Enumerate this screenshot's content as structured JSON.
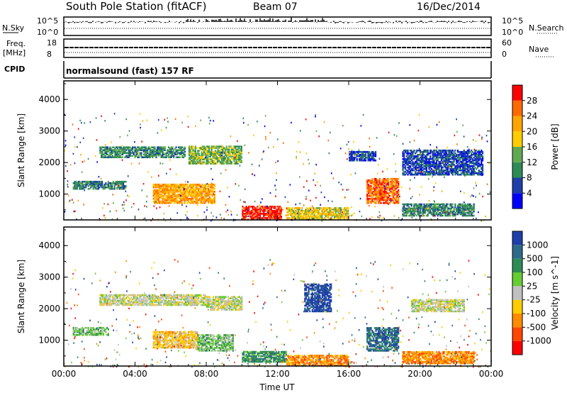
{
  "header": {
    "station": "South Pole Station (fitACF)",
    "beam": "Beam 07",
    "date": "16/Dec/2014"
  },
  "strip_labels": {
    "nsky": "N.Sky",
    "nsky_top": "10^5",
    "nsky_bottom": "10^0",
    "freq": "Freq.",
    "freq_unit": "[MHz]",
    "freq_top": "18",
    "freq_bottom": "8",
    "cpid": "CPID",
    "nsearch": "N.Search",
    "nsearch_top": "10^5",
    "nsearch_bottom": "10^0",
    "nave": "Nave",
    "nave_top": "60",
    "nave_bottom": "0",
    "cpid_text": "normalsound (fast) 157 RF"
  },
  "colors": {
    "power_scale": [
      "#0000ff",
      "#1f3fa8",
      "#2e8b57",
      "#5faa50",
      "#ffcc00",
      "#ffa500",
      "#ff6a00",
      "#ff0000"
    ],
    "velocity_scale": [
      "#1f3fa8",
      "#2e6b8a",
      "#2e8b57",
      "#66cc33",
      "#c0c0c0",
      "#ffcc00",
      "#ff8c00",
      "#ff4500",
      "#ff0000"
    ]
  },
  "chart_data": [
    {
      "type": "heatmap",
      "title": "Power",
      "ylabel": "Slant Range [km]",
      "colorbar_label": "Power [dB]",
      "colorbar_ticks": [
        "4",
        "8",
        "12",
        "16",
        "20",
        "24",
        "28"
      ],
      "x_ticks": [
        "00:00",
        "04:00",
        "08:00",
        "12:00",
        "16:00",
        "20:00",
        "00:00"
      ],
      "y_ticks": [
        "1000",
        "2000",
        "3000",
        "4000"
      ],
      "ylim": [
        180,
        4590
      ],
      "xlim_hours": [
        0,
        24
      ],
      "regions": [
        {
          "t0": 2.0,
          "t1": 6.8,
          "r0": 2150,
          "r1": 2500,
          "level": 2
        },
        {
          "t0": 7.0,
          "t1": 10.0,
          "r0": 1950,
          "r1": 2500,
          "level": 3
        },
        {
          "t0": 5.0,
          "t1": 8.5,
          "r0": 700,
          "r1": 1300,
          "level": 5
        },
        {
          "t0": 0.5,
          "t1": 3.5,
          "r0": 1150,
          "r1": 1400,
          "level": 2
        },
        {
          "t0": 10.0,
          "t1": 12.2,
          "r0": 180,
          "r1": 600,
          "level": 7
        },
        {
          "t0": 12.5,
          "t1": 16.0,
          "r0": 180,
          "r1": 550,
          "level": 4
        },
        {
          "t0": 17.0,
          "t1": 18.8,
          "r0": 700,
          "r1": 1500,
          "level": 6
        },
        {
          "t0": 16.0,
          "t1": 17.5,
          "r0": 2050,
          "r1": 2350,
          "level": 1
        },
        {
          "t0": 19.0,
          "t1": 23.5,
          "r0": 1600,
          "r1": 2400,
          "level": 1
        },
        {
          "t0": 19.0,
          "t1": 23.0,
          "r0": 300,
          "r1": 700,
          "level": 2
        }
      ]
    },
    {
      "type": "heatmap",
      "title": "Velocity",
      "ylabel": "Slant Range [km]",
      "xlabel": "Time UT",
      "colorbar_label": "Velocity [m s^-1]",
      "colorbar_ticks": [
        "1000",
        "500",
        "100",
        "25",
        "-25",
        "-100",
        "-500",
        "-1000"
      ],
      "x_ticks": [
        "00:00",
        "04:00",
        "08:00",
        "12:00",
        "16:00",
        "20:00",
        "00:00"
      ],
      "y_ticks": [
        "1000",
        "2000",
        "3000",
        "4000"
      ],
      "ylim": [
        180,
        4590
      ],
      "xlim_hours": [
        0,
        24
      ],
      "regions": [
        {
          "t0": 2.0,
          "t1": 8.0,
          "r0": 2100,
          "r1": 2450,
          "level": 4
        },
        {
          "t0": 8.0,
          "t1": 10.0,
          "r0": 1950,
          "r1": 2400,
          "level": 4
        },
        {
          "t0": 5.0,
          "t1": 7.5,
          "r0": 750,
          "r1": 1250,
          "level": 5
        },
        {
          "t0": 7.5,
          "t1": 9.5,
          "r0": 650,
          "r1": 1150,
          "level": 3
        },
        {
          "t0": 0.5,
          "t1": 2.5,
          "r0": 1150,
          "r1": 1400,
          "level": 3
        },
        {
          "t0": 10.0,
          "t1": 12.5,
          "r0": 300,
          "r1": 650,
          "level": 2
        },
        {
          "t0": 12.5,
          "t1": 16.0,
          "r0": 180,
          "r1": 500,
          "level": 6
        },
        {
          "t0": 17.0,
          "t1": 18.8,
          "r0": 650,
          "r1": 1400,
          "level": 1
        },
        {
          "t0": 13.5,
          "t1": 15.0,
          "r0": 1900,
          "r1": 2800,
          "level": 0
        },
        {
          "t0": 19.5,
          "t1": 22.5,
          "r0": 1900,
          "r1": 2300,
          "level": 4
        },
        {
          "t0": 19.0,
          "t1": 23.0,
          "r0": 250,
          "r1": 650,
          "level": 6
        }
      ]
    }
  ],
  "xlabel": "Time UT"
}
